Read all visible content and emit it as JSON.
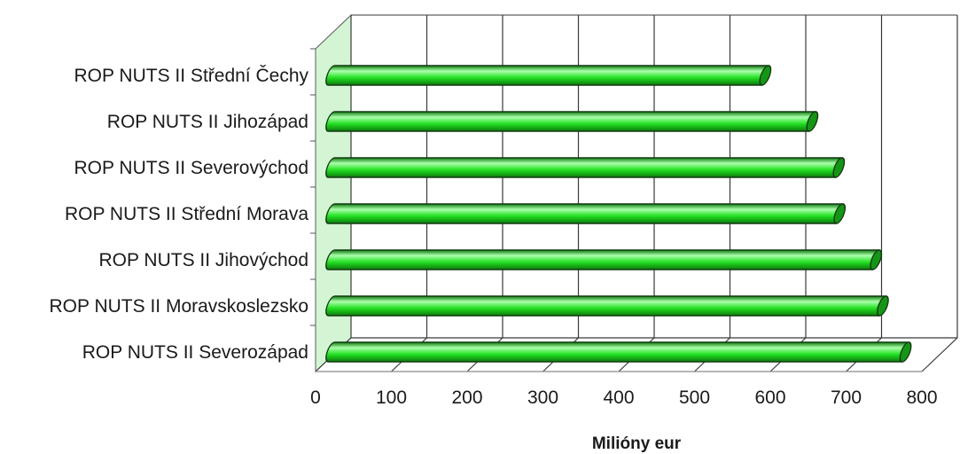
{
  "chart_data": {
    "type": "bar",
    "orientation": "horizontal",
    "style": "3d-cylinder",
    "categories": [
      "ROP NUTS II Střední Čechy",
      "ROP NUTS II Jihozápad",
      "ROP NUTS II Severovýchod",
      "ROP NUTS II Střední Morava",
      "ROP NUTS II Jihovýchod",
      "ROP NUTS II Moravskoslezsko",
      "ROP NUTS II Severozápad"
    ],
    "values": [
      570,
      632,
      667,
      668,
      716,
      725,
      755
    ],
    "xlabel": "Milióny eur",
    "ylabel": "",
    "title": "",
    "xlim": [
      0,
      800
    ],
    "xticks": [
      "0",
      "100",
      "200",
      "300",
      "400",
      "500",
      "600",
      "700",
      "800"
    ],
    "grid": true,
    "legend": "none",
    "colors": {
      "bar": "#22e022",
      "bar_highlight": "#aaffaa",
      "bar_dark": "#0c7a0c",
      "bar_end": "#159515",
      "outline": "#143a14",
      "wall": "#d4f5d4",
      "grid": "#3a3a3a"
    }
  }
}
